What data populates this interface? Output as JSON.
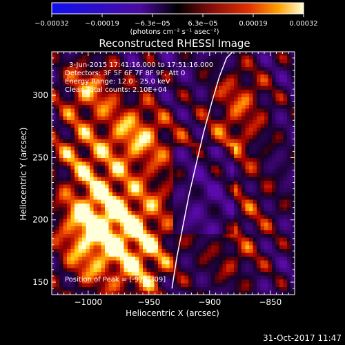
{
  "chart_data": {
    "type": "heatmap",
    "title": "Reconstructed RHESSI Image",
    "xlabel": "Heliocentric X (arcsec)",
    "ylabel": "Heliocentric Y (arcsec)",
    "xlim": [
      -1030,
      -830
    ],
    "ylim": [
      140,
      335
    ],
    "x_ticks": [
      -1000,
      -950,
      -900,
      -850
    ],
    "x_tick_labels": [
      "−1000",
      "−950",
      "−900",
      "−850"
    ],
    "y_ticks": [
      150,
      200,
      250,
      300
    ],
    "y_tick_labels": [
      "150",
      "200",
      "250",
      "300"
    ],
    "colorbar": {
      "min": -0.00032,
      "max": 0.00032,
      "tick_labels": [
        "−0.00032",
        "−0.00019",
        "−6.3e−05",
        "6.3e−05",
        "0.00019",
        "0.00032"
      ],
      "unit": "(photons cm⁻² s⁻¹ asec⁻²)"
    },
    "info_lines": [
      "3-Jun-2015 17:41:16.000 to 17:51:16.000",
      "Detectors: 3F 5F 6F 7F 8F 9F, Att 0",
      "Energy Range: 12.0 - 25.0 keV",
      "Clean    Total counts: 2.10E+04"
    ],
    "peak_label": "Position of Peak = [-976,309]",
    "peak": [
      -976,
      309
    ],
    "limb_x": [
      -931,
      -927,
      -922,
      -917,
      -911,
      -905,
      -898,
      -892,
      -886,
      -881
    ],
    "limb_y": [
      145,
      170,
      195,
      220,
      245,
      270,
      295,
      315,
      330,
      335
    ]
  },
  "footer": {
    "timestamp": "31-Oct-2017 11:47"
  }
}
